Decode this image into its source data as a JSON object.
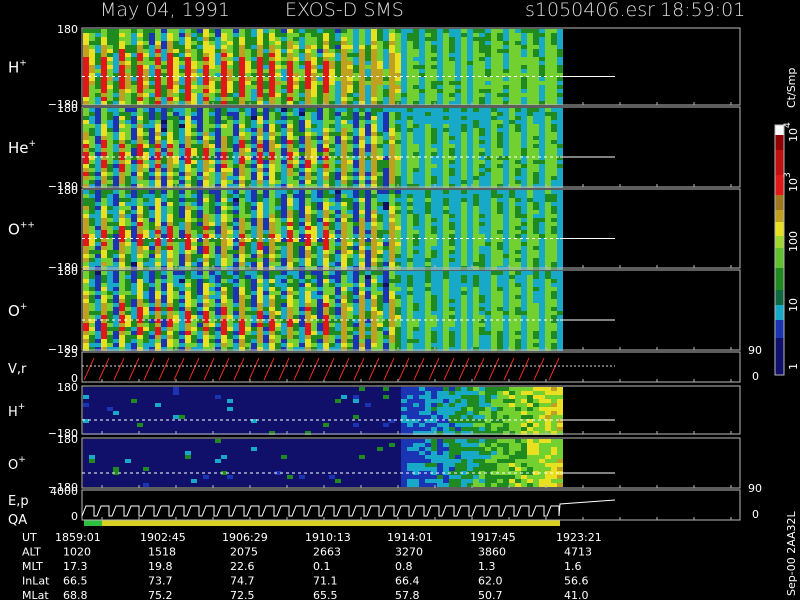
{
  "header": {
    "date": "May 04, 1991",
    "instrument": "EXOS-D SMS",
    "file": "s1050406.esr",
    "time": "18:59:01"
  },
  "panels": [
    {
      "label": {
        "base": "H",
        "sup": "+"
      },
      "top": "180",
      "bottom": "−180"
    },
    {
      "label": {
        "base": "He",
        "sup": "+"
      },
      "top": "180",
      "bottom": "−180"
    },
    {
      "label": {
        "base": "O",
        "sup": "++"
      },
      "top": "180",
      "bottom": "−180"
    },
    {
      "label": {
        "base": "O",
        "sup": "+"
      },
      "top": "180",
      "bottom": "−180"
    },
    {
      "label": "V,r",
      "top": "25",
      "bottom": "0",
      "right_top": "90",
      "right_bottom": "0"
    },
    {
      "label": {
        "base": "H",
        "sup": "+"
      },
      "top": "180",
      "bottom": "−180"
    },
    {
      "label": {
        "base": "O",
        "sup": "+"
      },
      "top": "180",
      "bottom": "−180"
    },
    {
      "label": "E,p",
      "label2": "QA",
      "top": "4000",
      "bottom": "0",
      "right_top": "90",
      "right_bottom": "0"
    }
  ],
  "colorbar": {
    "title": "Ct/Smp",
    "labels": [
      {
        "base": "10",
        "sup": "4"
      },
      {
        "base": "10",
        "sup": "3"
      },
      "100",
      "10",
      "1"
    ]
  },
  "table": {
    "rows": [
      {
        "label": "UT",
        "cells": [
          "1859:01",
          "1902:45",
          "1906:29",
          "1910:13",
          "1914:01",
          "1917:45",
          "1923:21"
        ]
      },
      {
        "label": "ALT",
        "cells": [
          "1020",
          "1518",
          "2075",
          "2663",
          "3270",
          "3860",
          "4713"
        ]
      },
      {
        "label": "MLT",
        "cells": [
          "17.3",
          "19.8",
          "22.6",
          "0.1",
          "0.8",
          "1.3",
          "1.6"
        ]
      },
      {
        "label": "InLat",
        "cells": [
          "66.5",
          "73.7",
          "74.7",
          "71.1",
          "66.4",
          "62.0",
          "56.6"
        ]
      },
      {
        "label": "MLat",
        "cells": [
          "68.8",
          "75.2",
          "72.5",
          "65.5",
          "57.8",
          "50.7",
          "41.0"
        ]
      }
    ]
  },
  "footer": "Sep-00 2AA32L"
}
